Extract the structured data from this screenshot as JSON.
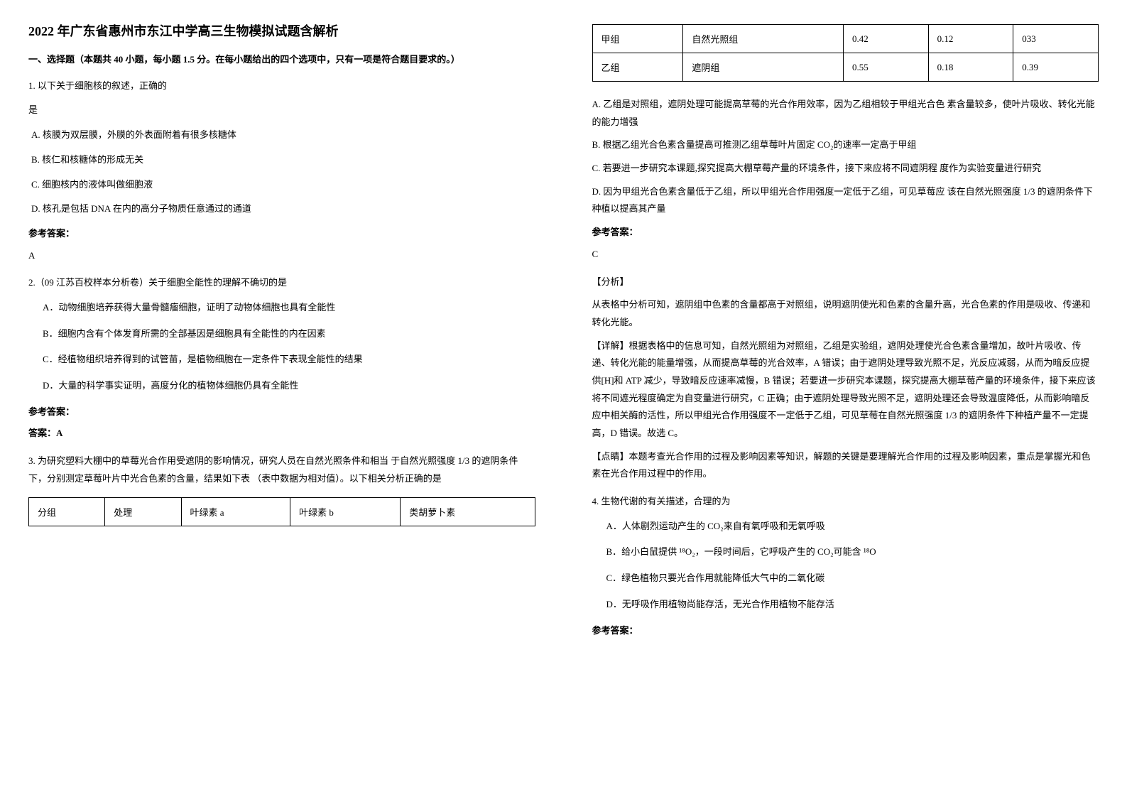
{
  "title": "2022 年广东省惠州市东江中学高三生物模拟试题含解析",
  "section1": "一、选择题（本题共 40 小题，每小题 1.5 分。在每小题给出的四个选项中，只有一项是符合题目要求的。）",
  "q1": {
    "stem1": "1. 以下关于细胞核的叙述，正确的",
    "stem2": "是",
    "optA": "A. 核膜为双层膜，外膜的外表面附着有很多核糖体",
    "optB": "B. 核仁和核糖体的形成无关",
    "optC": "C. 细胞核内的液体叫做细胞液",
    "optD": "D. 核孔是包括 DNA 在内的高分子物质任意通过的通道",
    "ansLabel": "参考答案：",
    "ansVal": "A"
  },
  "q2": {
    "stem": "2.（09 江苏百校样本分析卷）关于细胞全能性的理解不确切的是",
    "optA": "A．动物细胞培养获得大量骨髓瘤细胞，证明了动物体细胞也具有全能性",
    "optB": "B．细胞内含有个体发育所需的全部基因是细胞具有全能性的内在因素",
    "optC": "C．经植物组织培养得到的试管苗，是植物细胞在一定条件下表现全能性的结果",
    "optD": "D．大量的科学事实证明，高度分化的植物体细胞仍具有全能性",
    "ansLabel": "参考答案：",
    "ansVal": "答案：A"
  },
  "q3": {
    "stem": "3. 为研究塑料大棚中的草莓光合作用受遮阴的影响情况，研究人员在自然光照条件和相当 于自然光照强度 1/3 的遮阴条件下，分别测定草莓叶片中光合色素的含量，结果如下表 （表中数据为相对值）。以下相关分析正确的是",
    "table": {
      "headers": [
        "分组",
        "处理",
        "叶绿素 a",
        "叶绿素 b",
        "类胡萝卜素"
      ],
      "rows": [
        [
          "甲组",
          "自然光照组",
          "0.42",
          "0.12",
          "033"
        ],
        [
          "乙组",
          "遮阴组",
          "0.55",
          "0.18",
          "0.39"
        ]
      ]
    },
    "optA": "A. 乙组是对照组，遮阴处理可能提高草莓的光合作用效率，因为乙组相较于甲组光合色 素含量较多，使叶片吸收、转化光能的能力增强",
    "optB": "B. 根据乙组光合色素含量提高可推测乙组草莓叶片固定 CO₂的速率一定高于甲组",
    "optC": "C. 若要进一步研究本课题,探究提高大棚草莓产量的环境条件，接下来应将不同遮阴程 度作为实验变量进行研究",
    "optD": "D. 因为甲组光合色素含量低于乙组，所以甲组光合作用强度一定低于乙组，可见草莓应 该在自然光照强度 1/3 的遮阴条件下种植以提高其产量",
    "ansLabel": "参考答案：",
    "ansVal": "C",
    "analysisLabel": "【分析】",
    "analysis1": "从表格中分析可知，遮阴组中色素的含量都高于对照组，说明遮阴使光和色素的含量升高，光合色素的作用是吸收、传递和转化光能。",
    "detail": "【详解】根据表格中的信息可知，自然光照组为对照组，乙组是实验组，遮阴处理使光合色素含量增加，故叶片吸收、传递、转化光能的能量增强，从而提高草莓的光合效率，A 错误；由于遮阴处理导致光照不足，光反应减弱，从而为暗反应提供[H]和 ATP 减少，导致暗反应速率减慢，B 错误；若要进一步研究本课题，探究提高大棚草莓产量的环境条件，接下来应该将不同遮光程度确定为自变量进行研究，C 正确；由于遮阴处理导致光照不足，遮阴处理还会导致温度降低，从而影响暗反应中相关酶的活性，所以甲组光合作用强度不一定低于乙组，可见草莓在自然光照强度 1/3 的遮阴条件下种植产量不一定提高，D 错误。故选 C。",
    "point": "【点睛】本题考查光合作用的过程及影响因素等知识，解题的关键是要理解光合作用的过程及影响因素，重点是掌握光和色素在光合作用过程中的作用。"
  },
  "q4": {
    "stem": "4. 生物代谢的有关描述，合理的为",
    "optA": "A．人体剧烈运动产生的 CO₂来自有氧呼吸和无氧呼吸",
    "optB": "B．给小白鼠提供 ¹⁸O₂，一段时间后，它呼吸产生的 CO₂可能含 ¹⁸O",
    "optC": "C．绿色植物只要光合作用就能降低大气中的二氧化碳",
    "optD": "D．无呼吸作用植物尚能存活，无光合作用植物不能存活",
    "ansLabel": "参考答案："
  }
}
